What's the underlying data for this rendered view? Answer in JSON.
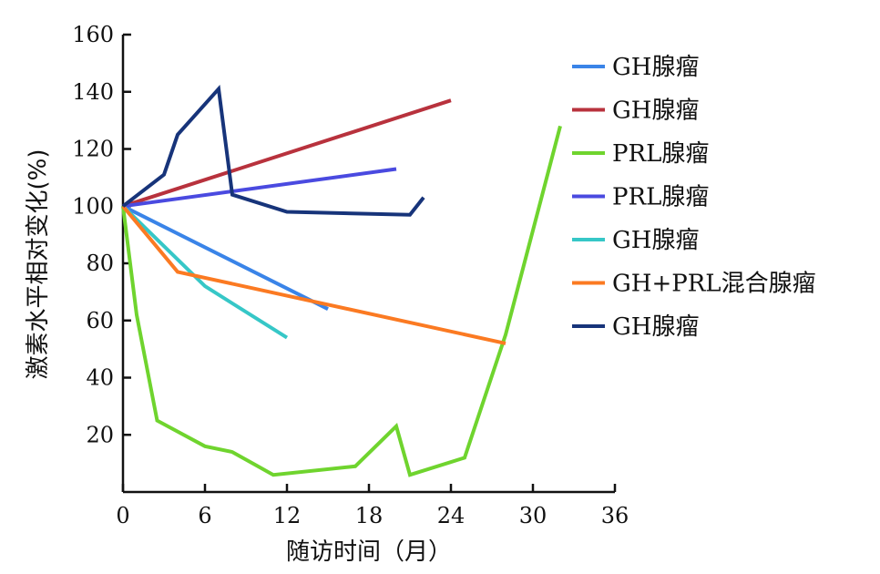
{
  "chart_data": {
    "type": "line",
    "title": "",
    "xlabel": "随访时间（月）",
    "ylabel": "激素水平相对变化(%)",
    "xlim": [
      0,
      36
    ],
    "ylim": [
      0,
      160
    ],
    "xticks": [
      0,
      6,
      12,
      18,
      24,
      30,
      36
    ],
    "yticks": [
      20,
      40,
      60,
      80,
      100,
      120,
      140,
      160
    ],
    "grid": false,
    "legend_position": "right",
    "series": [
      {
        "name": "GH腺瘤",
        "color": "#3a84e8",
        "points": [
          [
            0,
            100
          ],
          [
            15,
            64
          ]
        ]
      },
      {
        "name": "GH腺瘤",
        "color": "#b8323d",
        "points": [
          [
            0,
            100
          ],
          [
            24,
            137
          ]
        ]
      },
      {
        "name": "PRL腺瘤",
        "color": "#6fd42e",
        "points": [
          [
            0,
            100
          ],
          [
            1,
            62
          ],
          [
            2.5,
            25
          ],
          [
            6,
            16
          ],
          [
            8,
            14
          ],
          [
            11,
            6
          ],
          [
            17,
            9
          ],
          [
            20,
            23
          ],
          [
            21,
            6
          ],
          [
            25,
            12
          ],
          [
            28,
            55
          ],
          [
            32,
            128
          ]
        ]
      },
      {
        "name": "PRL腺瘤",
        "color": "#4a4ae0",
        "points": [
          [
            0,
            100
          ],
          [
            20,
            113
          ]
        ]
      },
      {
        "name": "GH腺瘤",
        "color": "#36c7c7",
        "points": [
          [
            0,
            100
          ],
          [
            6,
            72
          ],
          [
            12,
            54
          ]
        ]
      },
      {
        "name": "GH+PRL混合腺瘤",
        "color": "#fb7a22",
        "points": [
          [
            0,
            100
          ],
          [
            4,
            77
          ],
          [
            28,
            52
          ]
        ]
      },
      {
        "name": "GH腺瘤",
        "color": "#17347a",
        "points": [
          [
            0,
            100
          ],
          [
            3,
            111
          ],
          [
            4,
            125
          ],
          [
            7,
            141
          ],
          [
            8,
            104
          ],
          [
            12,
            98
          ],
          [
            21,
            97
          ],
          [
            22,
            103
          ]
        ]
      }
    ]
  }
}
